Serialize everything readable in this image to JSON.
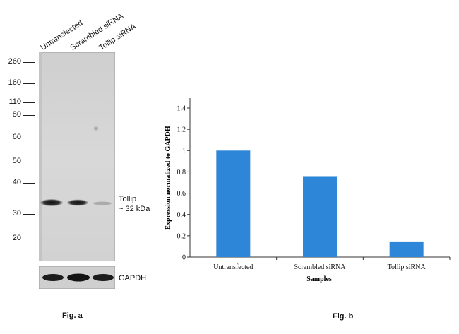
{
  "fig_a": {
    "label": "Fig. a",
    "lanes": [
      "Untransfected",
      "Scrambled siRNA",
      "Tollip siRNA"
    ],
    "markers": [
      "260",
      "160",
      "110",
      "80",
      "60",
      "50",
      "40",
      "30",
      "20"
    ],
    "band_label_1": "Tollip",
    "band_label_2": "~ 32 kDa",
    "loading_control": "GAPDH"
  },
  "fig_b": {
    "label": "Fig. b"
  },
  "chart_data": {
    "type": "bar",
    "categories": [
      "Untransfected",
      "Scrambled siRNA",
      "Tollip siRNA"
    ],
    "values": [
      1.0,
      0.76,
      0.14
    ],
    "xlabel": "Samples",
    "ylabel": "Expression normalized to GAPDH",
    "ylim": [
      0,
      1.4
    ],
    "yticks": [
      "0",
      "0.2",
      "0.4",
      "0.6",
      "0.8",
      "1",
      "1.2",
      "1.4"
    ],
    "bar_color": "#2e86d8",
    "grid": false,
    "legend": "none"
  }
}
